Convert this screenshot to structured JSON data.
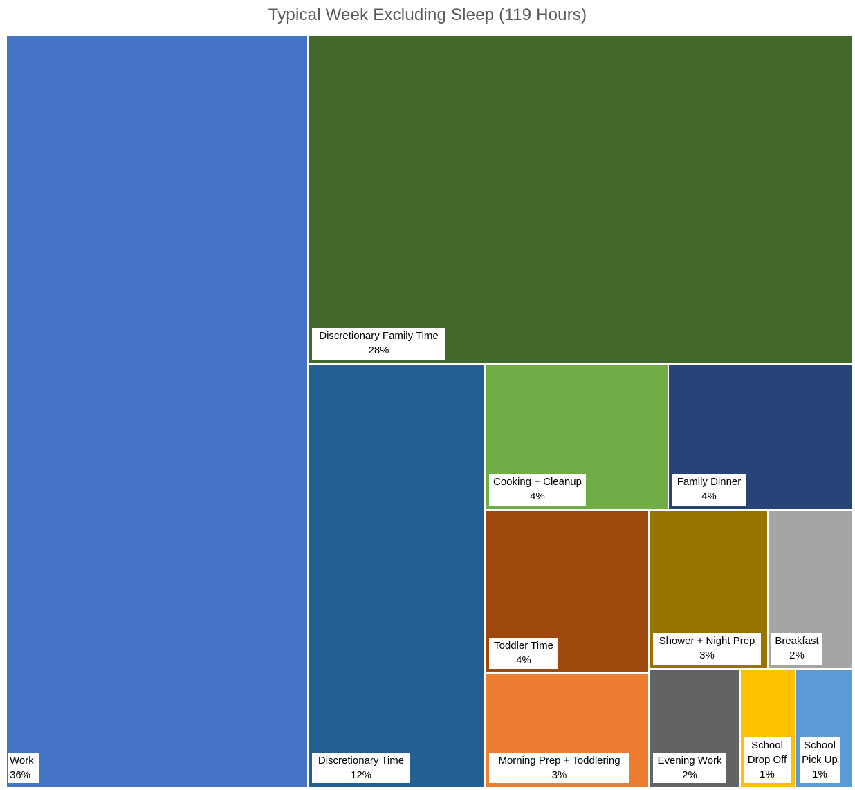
{
  "chart_data": {
    "type": "treemap",
    "title": "Typical Week Excluding Sleep (119 Hours)",
    "total_hours": 119,
    "items": [
      {
        "name": "Work",
        "percent": "36%",
        "color": "#4472C4"
      },
      {
        "name": "Discretionary Family Time",
        "percent": "28%",
        "color": "#43682B"
      },
      {
        "name": "Discretionary Time",
        "percent": "12%",
        "color": "#255E91"
      },
      {
        "name": "Cooking + Cleanup",
        "percent": "4%",
        "color": "#70AD47"
      },
      {
        "name": "Family Dinner",
        "percent": "4%",
        "color": "#264478"
      },
      {
        "name": "Toddler Time",
        "percent": "4%",
        "color": "#9E480E"
      },
      {
        "name": "Shower + Night Prep",
        "percent": "3%",
        "color": "#997300"
      },
      {
        "name": "Breakfast",
        "percent": "2%",
        "color": "#A5A5A5"
      },
      {
        "name": "Morning Prep + Toddlering",
        "percent": "3%",
        "color": "#ED7D31"
      },
      {
        "name": "Evening Work",
        "percent": "2%",
        "color": "#636363"
      },
      {
        "name": "School Drop Off",
        "percent": "1%",
        "color": "#FFC000"
      },
      {
        "name": "School Pick Up",
        "percent": "1%",
        "color": "#5B9BD5"
      }
    ]
  }
}
